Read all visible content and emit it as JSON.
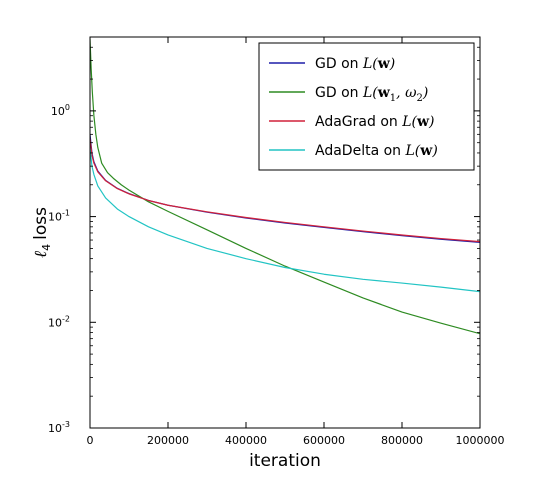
{
  "chart_data": {
    "type": "line",
    "title": "",
    "xlabel": "iteration",
    "ylabel": "ℓ4 loss",
    "ylabel_symbol": "ℓ",
    "ylabel_subscript": "4",
    "ylabel_word": "loss",
    "xlim": [
      0,
      1000000
    ],
    "ylim": [
      0.001,
      5
    ],
    "yscale": "log",
    "grid": false,
    "legend_position": "top-right",
    "x_ticks": [
      0,
      200000,
      400000,
      600000,
      800000,
      1000000
    ],
    "x_tick_labels": [
      "0",
      "200000",
      "400000",
      "600000",
      "800000",
      "1000000"
    ],
    "y_ticks": [
      0.001,
      0.01,
      0.1,
      1
    ],
    "y_tick_labels": [
      {
        "base": "10",
        "exp": "-3"
      },
      {
        "base": "10",
        "exp": "-2"
      },
      {
        "base": "10",
        "exp": "-1"
      },
      {
        "base": "10",
        "exp": "0"
      }
    ],
    "series": [
      {
        "name": "GD on L(w)",
        "legend_prefix": "GD on ",
        "legend_math": [
          {
            "t": "L(",
            "s": "i"
          },
          {
            "t": "w",
            "s": "b"
          },
          {
            "t": ")",
            "s": "i"
          }
        ],
        "color": "#1f1fa8",
        "x": [
          0,
          5000,
          10000,
          20000,
          40000,
          70000,
          100000,
          150000,
          200000,
          300000,
          400000,
          500000,
          600000,
          700000,
          800000,
          900000,
          1000000
        ],
        "y": [
          0.6,
          0.4,
          0.33,
          0.27,
          0.22,
          0.185,
          0.165,
          0.142,
          0.128,
          0.11,
          0.097,
          0.087,
          0.079,
          0.072,
          0.066,
          0.061,
          0.057
        ]
      },
      {
        "name": "GD on L(w1, ω2)",
        "legend_prefix": "GD on ",
        "legend_math": [
          {
            "t": "L(",
            "s": "i"
          },
          {
            "t": "w",
            "s": "b"
          },
          {
            "t": "1",
            "s": "sub"
          },
          {
            "t": ", ω",
            "s": "i"
          },
          {
            "t": "2",
            "s": "sub"
          },
          {
            "t": ")",
            "s": "i"
          }
        ],
        "color": "#2e8b22",
        "x": [
          0,
          3000,
          6000,
          10000,
          15000,
          20000,
          30000,
          45000,
          60000,
          80000,
          100000,
          150000,
          200000,
          300000,
          400000,
          500000,
          600000,
          700000,
          800000,
          900000,
          1000000
        ],
        "y": [
          4.8,
          2.5,
          1.5,
          0.9,
          0.6,
          0.45,
          0.32,
          0.26,
          0.23,
          0.2,
          0.178,
          0.138,
          0.112,
          0.075,
          0.05,
          0.034,
          0.024,
          0.017,
          0.0125,
          0.0098,
          0.0078
        ]
      },
      {
        "name": "AdaGrad on L(w)",
        "legend_prefix": "AdaGrad on ",
        "legend_math": [
          {
            "t": "L(",
            "s": "i"
          },
          {
            "t": "w",
            "s": "b"
          },
          {
            "t": ")",
            "s": "i"
          }
        ],
        "color": "#d0213a",
        "x": [
          0,
          5000,
          10000,
          20000,
          40000,
          70000,
          100000,
          150000,
          200000,
          300000,
          400000,
          500000,
          600000,
          700000,
          800000,
          900000,
          1000000
        ],
        "y": [
          0.55,
          0.38,
          0.32,
          0.265,
          0.218,
          0.184,
          0.164,
          0.142,
          0.128,
          0.111,
          0.098,
          0.088,
          0.08,
          0.073,
          0.067,
          0.062,
          0.058
        ]
      },
      {
        "name": "AdaDelta on L(w)",
        "legend_prefix": "AdaDelta on ",
        "legend_math": [
          {
            "t": "L(",
            "s": "i"
          },
          {
            "t": "w",
            "s": "b"
          },
          {
            "t": ")",
            "s": "i"
          }
        ],
        "color": "#22c4c4",
        "x": [
          0,
          5000,
          10000,
          20000,
          40000,
          70000,
          100000,
          150000,
          200000,
          300000,
          400000,
          500000,
          600000,
          700000,
          800000,
          900000,
          1000000
        ],
        "y": [
          0.45,
          0.3,
          0.25,
          0.195,
          0.15,
          0.118,
          0.1,
          0.08,
          0.067,
          0.05,
          0.04,
          0.033,
          0.0285,
          0.0255,
          0.0235,
          0.0215,
          0.0195
        ]
      }
    ]
  }
}
